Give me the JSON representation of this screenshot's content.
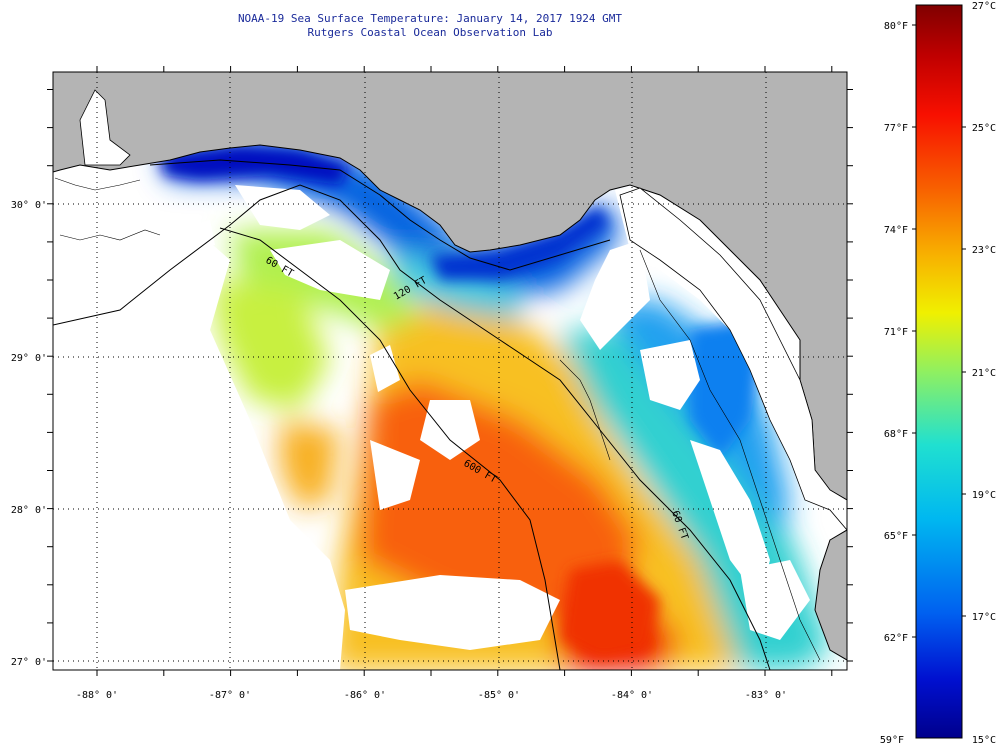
{
  "header": {
    "title": "NOAA-19 Sea Surface Temperature:  January 14, 2017 1924 GMT",
    "subtitle": "Rutgers Coastal Ocean Observation Lab"
  },
  "axes": {
    "lon_labels": [
      "-88° 0'",
      "-87° 0'",
      "-86° 0'",
      "-85° 0'",
      "-84° 0'",
      "-83° 0'"
    ],
    "lat_labels": [
      "30° 0'",
      "29° 0'",
      "28° 0'",
      "27° 0'"
    ]
  },
  "contours": {
    "label_60ft": "60 FT",
    "label_120ft": "120 FT",
    "label_600ft": "600 FT"
  },
  "colorbar": {
    "fahrenheit": [
      "80°F",
      "77°F",
      "74°F",
      "71°F",
      "68°F",
      "65°F",
      "62°F",
      "59°F"
    ],
    "celsius": [
      "27°C",
      "25°C",
      "23°C",
      "21°C",
      "19°C",
      "17°C",
      "15°C"
    ]
  },
  "colors": {
    "land": "#b4b4b4",
    "cloud": "#ffffff",
    "title": "#1a2a9a"
  }
}
